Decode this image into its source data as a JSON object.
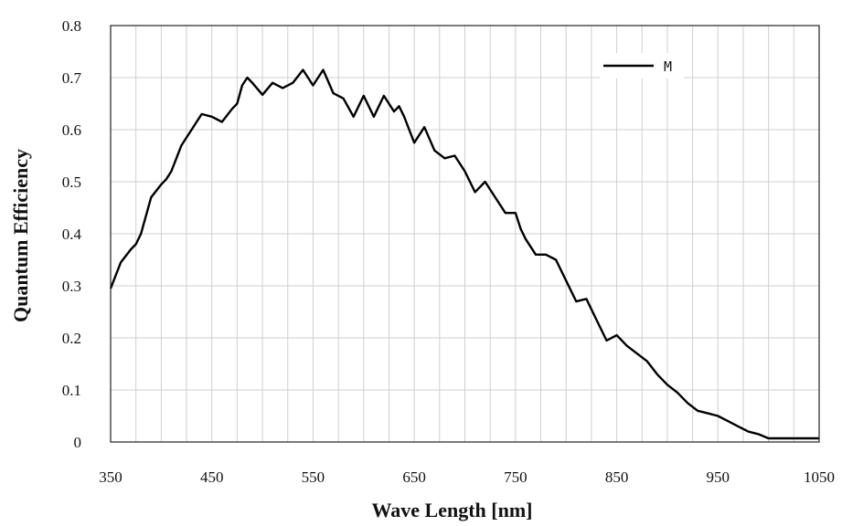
{
  "chart_data": {
    "type": "line",
    "xlabel": "Wave Length [nm]",
    "ylabel": "Quantum Efficiency",
    "xlim": [
      350,
      1050
    ],
    "ylim": [
      0,
      0.8
    ],
    "xticks": [
      350,
      450,
      550,
      650,
      750,
      850,
      950,
      1050
    ],
    "yticks": [
      0,
      0.1,
      0.2,
      0.3,
      0.4,
      0.5,
      0.6,
      0.7,
      0.8
    ],
    "grid": true,
    "legend_position": "top-right",
    "series": [
      {
        "name": "M",
        "color": "#000000",
        "x": [
          350,
          360,
          370,
          375,
          380,
          390,
          400,
          405,
          410,
          420,
          430,
          440,
          450,
          460,
          470,
          475,
          480,
          485,
          490,
          500,
          510,
          520,
          530,
          540,
          550,
          560,
          570,
          580,
          590,
          600,
          610,
          620,
          630,
          635,
          640,
          650,
          660,
          670,
          680,
          690,
          695,
          700,
          710,
          720,
          730,
          740,
          750,
          755,
          760,
          770,
          780,
          790,
          800,
          810,
          820,
          830,
          840,
          850,
          860,
          870,
          880,
          890,
          900,
          910,
          920,
          930,
          940,
          950,
          960,
          970,
          980,
          990,
          1000,
          1010,
          1020,
          1030,
          1040,
          1050
        ],
        "y": [
          0.295,
          0.345,
          0.37,
          0.38,
          0.4,
          0.47,
          0.495,
          0.505,
          0.52,
          0.57,
          0.6,
          0.63,
          0.625,
          0.615,
          0.64,
          0.65,
          0.685,
          0.7,
          0.69,
          0.667,
          0.69,
          0.68,
          0.69,
          0.715,
          0.685,
          0.715,
          0.67,
          0.66,
          0.625,
          0.665,
          0.625,
          0.665,
          0.635,
          0.645,
          0.625,
          0.575,
          0.605,
          0.56,
          0.545,
          0.55,
          0.535,
          0.52,
          0.48,
          0.5,
          0.47,
          0.44,
          0.44,
          0.41,
          0.39,
          0.36,
          0.36,
          0.35,
          0.31,
          0.27,
          0.275,
          0.235,
          0.195,
          0.205,
          0.185,
          0.17,
          0.155,
          0.13,
          0.11,
          0.095,
          0.075,
          0.06,
          0.055,
          0.05,
          0.04,
          0.03,
          0.02,
          0.015,
          0.007,
          0.007,
          0.007,
          0.007,
          0.007,
          0.007
        ]
      }
    ]
  }
}
